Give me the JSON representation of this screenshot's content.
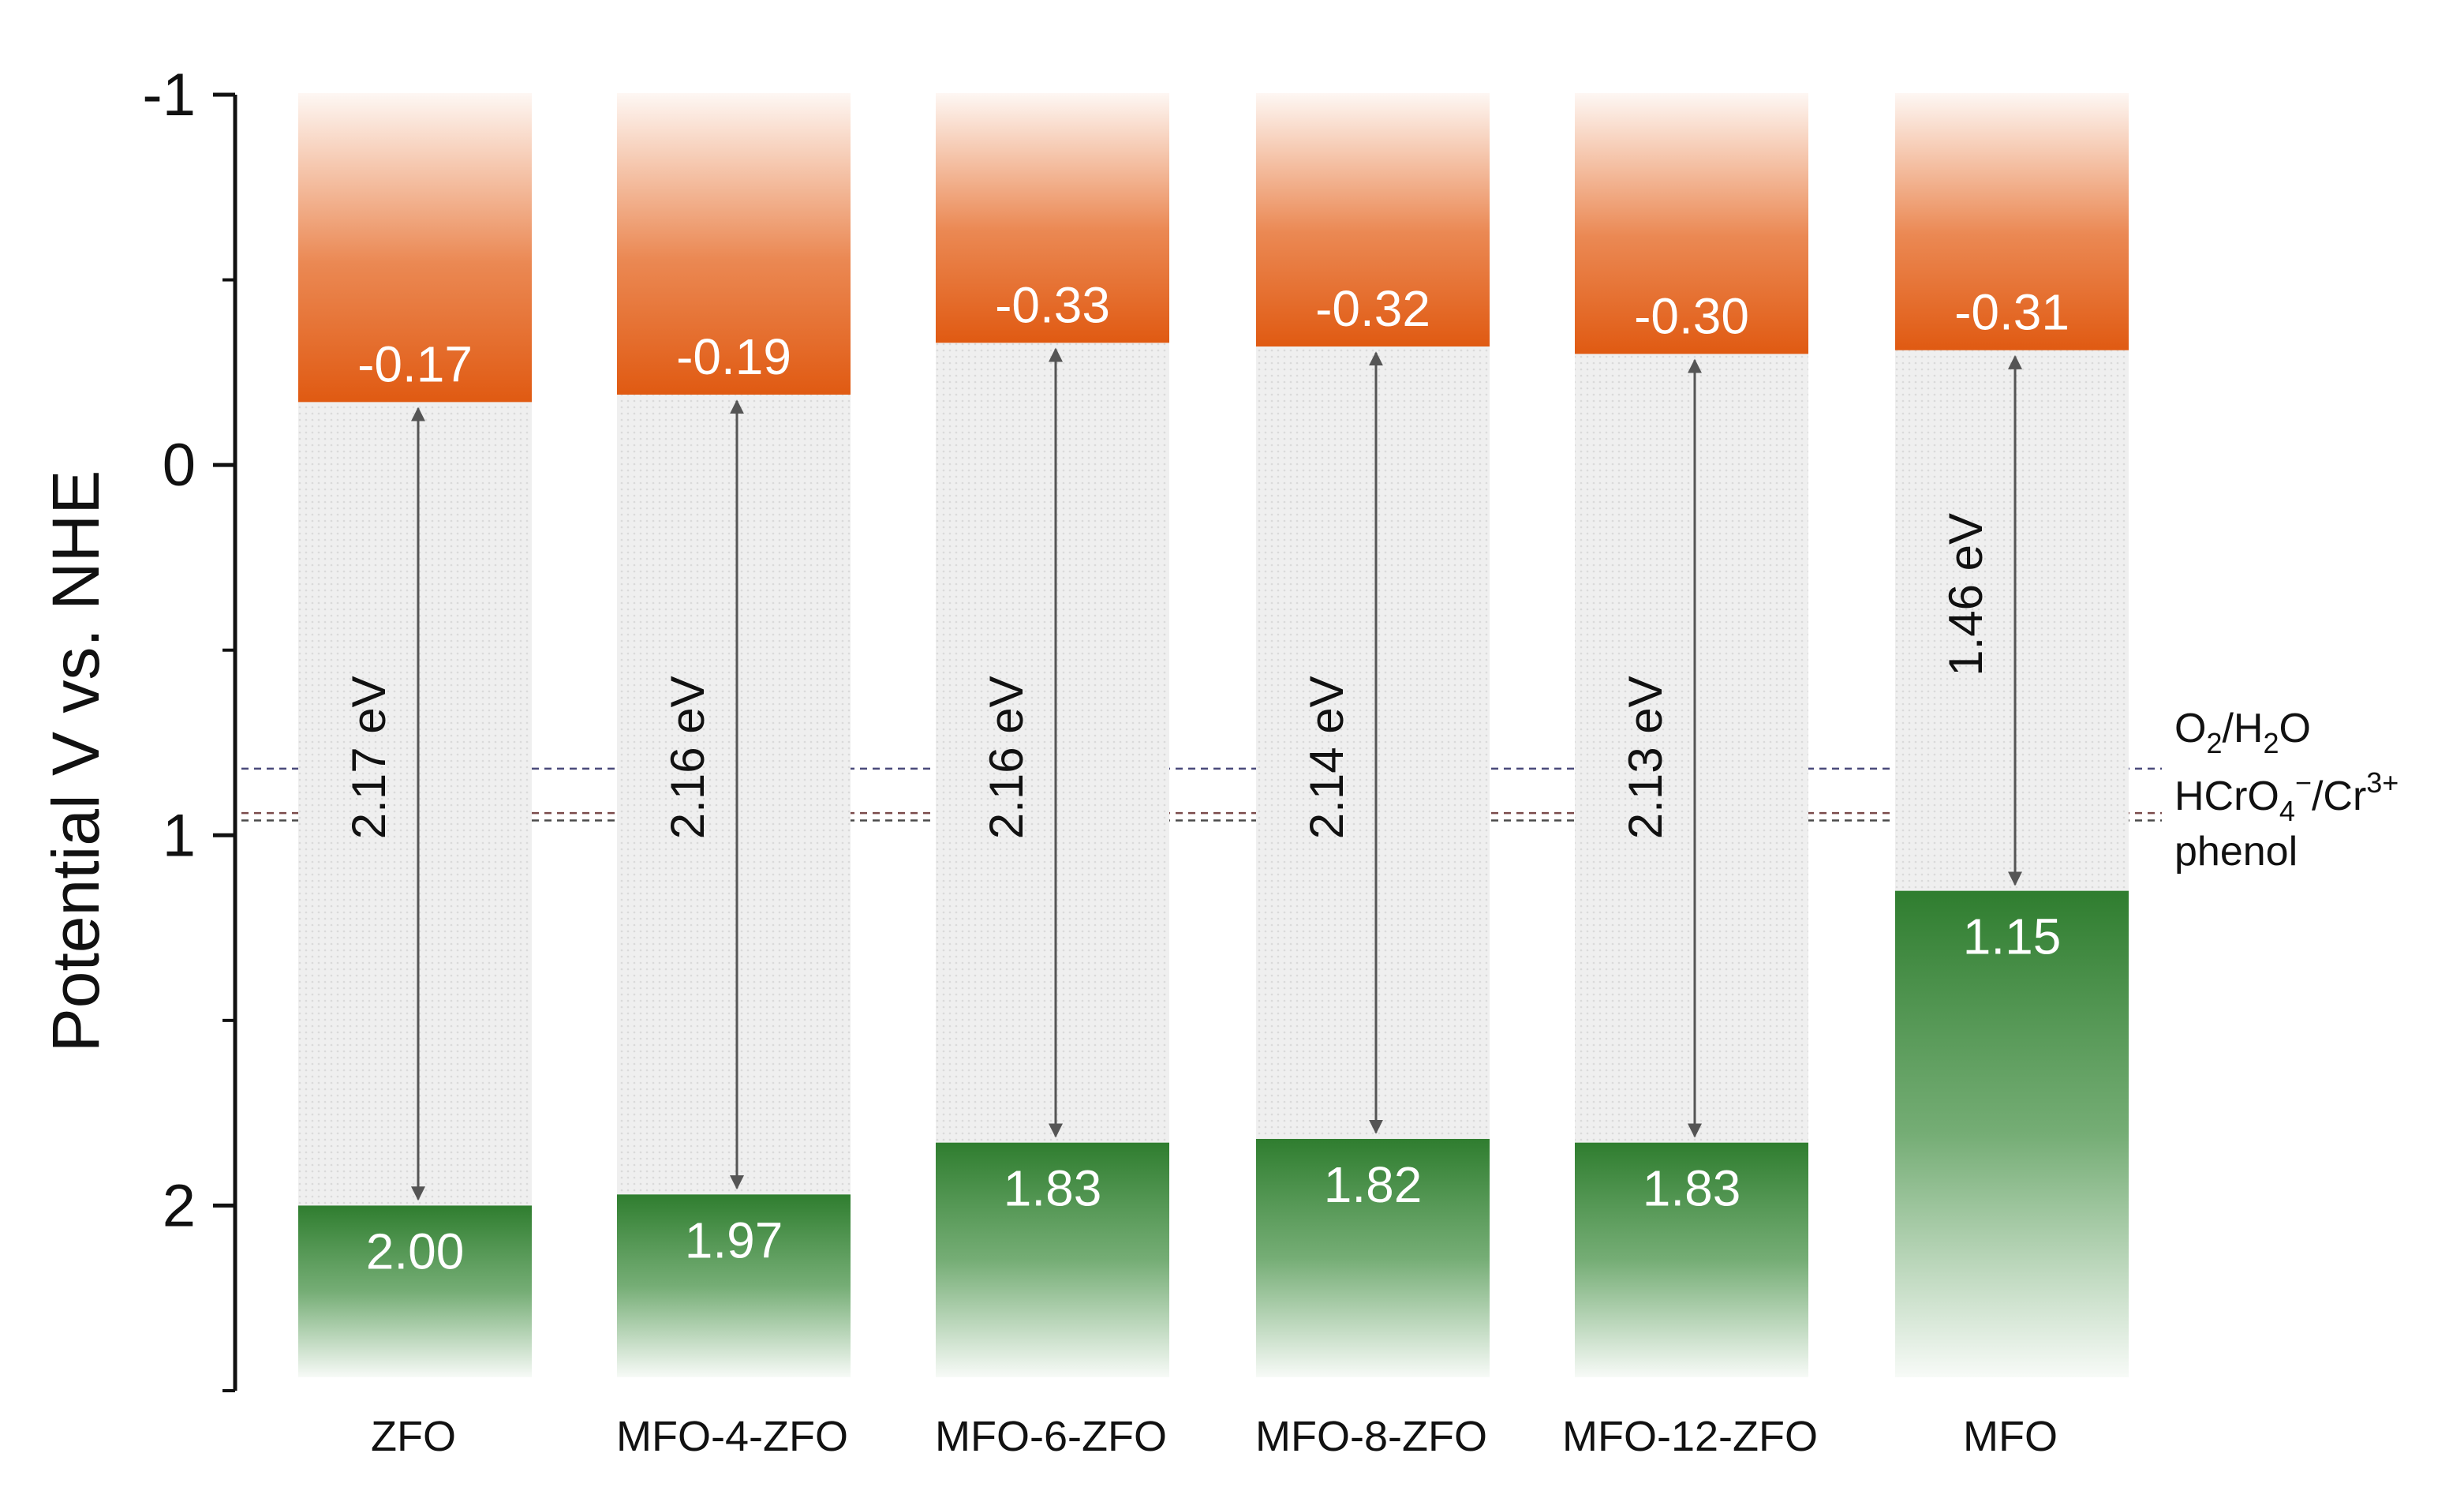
{
  "chart_data": {
    "type": "band-diagram",
    "ylabel": "Potential V vs. NHE",
    "ylim": [
      -1,
      2.5
    ],
    "y_inverted": true,
    "yticks": [
      -1,
      0,
      1,
      2
    ],
    "ytick_labels": [
      "-1",
      "0",
      "1",
      "2"
    ],
    "categories": [
      {
        "name": "ZFO",
        "cb": -0.17,
        "vb": 2.0,
        "cb_label": "-0.17",
        "vb_label": "2.00",
        "gap_label": "2.17 eV"
      },
      {
        "name": "MFO-4-ZFO",
        "cb": -0.19,
        "vb": 1.97,
        "cb_label": "-0.19",
        "vb_label": "1.97",
        "gap_label": "2.16 eV"
      },
      {
        "name": "MFO-6-ZFO",
        "cb": -0.33,
        "vb": 1.83,
        "cb_label": "-0.33",
        "vb_label": "1.83",
        "gap_label": "2.16 eV"
      },
      {
        "name": "MFO-8-ZFO",
        "cb": -0.32,
        "vb": 1.82,
        "cb_label": "-0.32",
        "vb_label": "1.82",
        "gap_label": "2.14 eV"
      },
      {
        "name": "MFO-12-ZFO",
        "cb": -0.3,
        "vb": 1.83,
        "cb_label": "-0.30",
        "vb_label": "1.83",
        "gap_label": "2.13 eV"
      },
      {
        "name": "MFO",
        "cb": -0.31,
        "vb": 1.15,
        "cb_label": "-0.31",
        "vb_label": "1.15",
        "gap_label": "1.46 eV"
      }
    ],
    "reference_lines": [
      {
        "value": 0.82,
        "color": "#4a4a7a",
        "label_main": "O",
        "label_sub1": "2",
        "label_mid": "/H",
        "label_sub2": "2",
        "label_end": "O"
      },
      {
        "value": 0.94,
        "color": "#7a4a4a",
        "label_main": "HCrO",
        "label_sub1": "4",
        "label_sup1": "−",
        "label_mid": "/Cr",
        "label_sup2": "3+"
      },
      {
        "value": 0.96,
        "color": "#4a4a4a",
        "label_main": "phenol"
      }
    ],
    "colors": {
      "cb_band": "#e4611a",
      "vb_band": "#3a8a3a",
      "gap_fill": "#ececec",
      "axis": "#111111",
      "arrow": "#555555"
    }
  }
}
